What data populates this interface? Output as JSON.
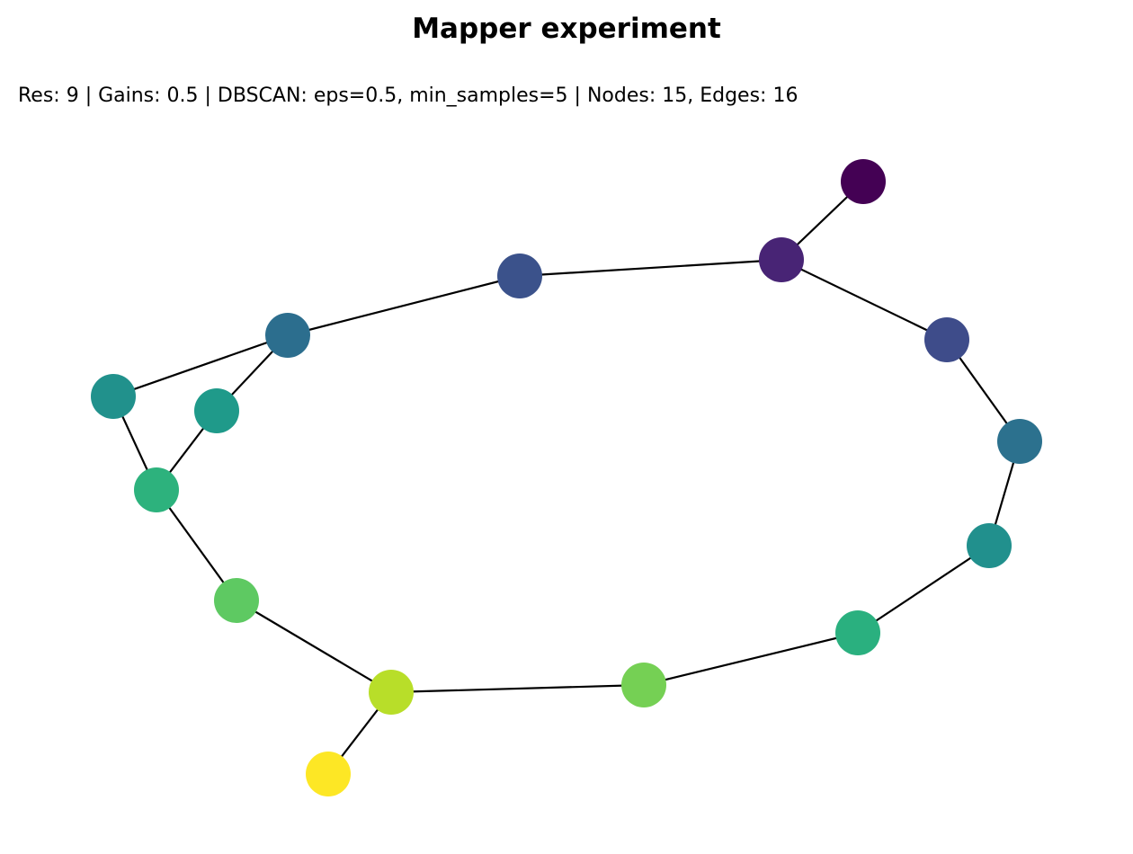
{
  "title": "Mapper experiment",
  "subtitle": "Res: 9 | Gains: 0.5 | DBSCAN: eps=0.5, min_samples=5 | Nodes: 15, Edges: 16",
  "graph": {
    "nodes": [
      {
        "id": "n0",
        "color": "#440154"
      },
      {
        "id": "n1",
        "color": "#482475"
      },
      {
        "id": "n2",
        "color": "#3b528b"
      },
      {
        "id": "n3",
        "color": "#3e4c8a"
      },
      {
        "id": "n4",
        "color": "#2c718e"
      },
      {
        "id": "n5",
        "color": "#2c6e8e"
      },
      {
        "id": "n6",
        "color": "#21908d"
      },
      {
        "id": "n7",
        "color": "#21918c"
      },
      {
        "id": "n8",
        "color": "#1f9a8a"
      },
      {
        "id": "n9",
        "color": "#2db27d"
      },
      {
        "id": "n10",
        "color": "#2ab07f"
      },
      {
        "id": "n11",
        "color": "#5ec962"
      },
      {
        "id": "n12",
        "color": "#75d054"
      },
      {
        "id": "n13",
        "color": "#b8de29"
      },
      {
        "id": "n14",
        "color": "#fde725"
      }
    ],
    "edges": [
      [
        "n0",
        "n1"
      ],
      [
        "n1",
        "n2"
      ],
      [
        "n1",
        "n3"
      ],
      [
        "n3",
        "n4"
      ],
      [
        "n4",
        "n6"
      ],
      [
        "n6",
        "n10"
      ],
      [
        "n10",
        "n12"
      ],
      [
        "n12",
        "n13"
      ],
      [
        "n13",
        "n14"
      ],
      [
        "n13",
        "n11"
      ],
      [
        "n11",
        "n9"
      ],
      [
        "n9",
        "n7"
      ],
      [
        "n9",
        "n8"
      ],
      [
        "n7",
        "n5"
      ],
      [
        "n8",
        "n5"
      ],
      [
        "n5",
        "n2"
      ]
    ],
    "edge_color": "#000000"
  }
}
